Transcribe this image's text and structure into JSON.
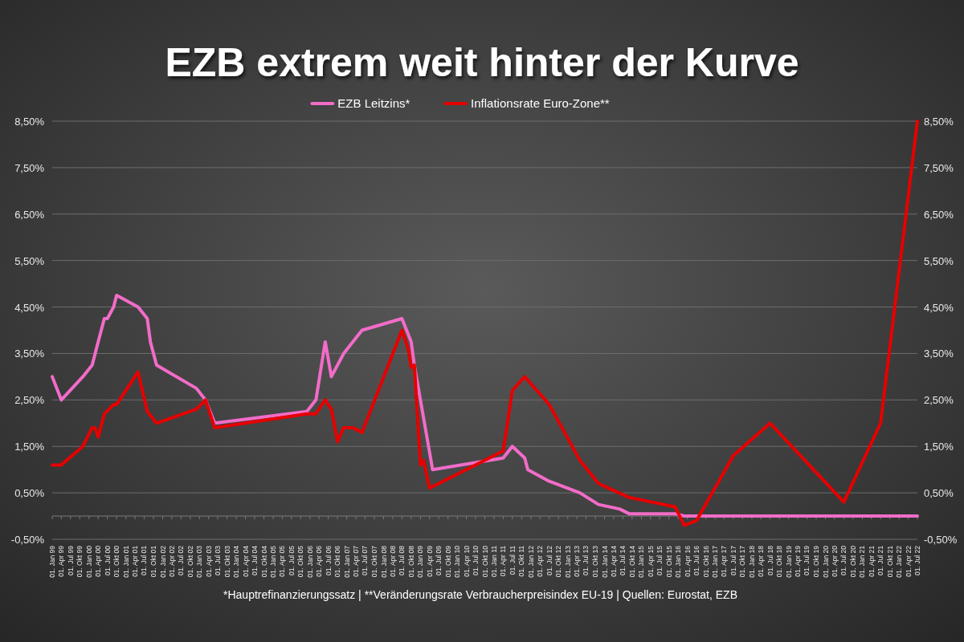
{
  "chart_data": {
    "type": "line",
    "title": "EZB extrem weit hinter der Kurve",
    "legend": "top",
    "grid": "y",
    "line_style": "solid",
    "marker": "none",
    "annotations": [
      "*Hauptrefinanzierungssatz | **Veränderungsrate Verbraucherpreisindex EU-19 | Quellen: Eurostat, EZB"
    ],
    "xlim": [
      "1999-01",
      "2022-07"
    ],
    "xticks": [
      {
        "value": "1999-01",
        "label": "01. Jan 99"
      },
      {
        "value": "1999-04",
        "label": "01. Apr 99"
      },
      {
        "value": "1999-07",
        "label": "01. Jul 99"
      },
      {
        "value": "1999-10",
        "label": "01. Okt 99"
      },
      {
        "value": "2000-01",
        "label": "01. Jan 00"
      },
      {
        "value": "2000-04",
        "label": "01. Apr 00"
      },
      {
        "value": "2000-07",
        "label": "01. Jul 00"
      },
      {
        "value": "2000-10",
        "label": "01. Okt 00"
      },
      {
        "value": "2001-01",
        "label": "01. Jan 01"
      },
      {
        "value": "2001-04",
        "label": "01. Apr 01"
      },
      {
        "value": "2001-07",
        "label": "01. Jul 01"
      },
      {
        "value": "2001-10",
        "label": "01. Okt 01"
      },
      {
        "value": "2002-01",
        "label": "01. Jan 02"
      },
      {
        "value": "2002-04",
        "label": "01. Apr 02"
      },
      {
        "value": "2002-07",
        "label": "01. Jul 02"
      },
      {
        "value": "2002-10",
        "label": "01. Okt 02"
      },
      {
        "value": "2003-01",
        "label": "01. Jan 03"
      },
      {
        "value": "2003-04",
        "label": "01. Apr 03"
      },
      {
        "value": "2003-07",
        "label": "01. Jul 03"
      },
      {
        "value": "2003-10",
        "label": "01. Okt 03"
      },
      {
        "value": "2004-01",
        "label": "01. Jan 04"
      },
      {
        "value": "2004-04",
        "label": "01. Apr 04"
      },
      {
        "value": "2004-07",
        "label": "01. Jul 04"
      },
      {
        "value": "2004-10",
        "label": "01. Okt 04"
      },
      {
        "value": "2005-01",
        "label": "01. Jan 05"
      },
      {
        "value": "2005-04",
        "label": "01. Apr 05"
      },
      {
        "value": "2005-07",
        "label": "01. Jul 05"
      },
      {
        "value": "2005-10",
        "label": "01. Okt 05"
      },
      {
        "value": "2006-01",
        "label": "01. Jan 06"
      },
      {
        "value": "2006-04",
        "label": "01. Apr 06"
      },
      {
        "value": "2006-07",
        "label": "01. Jul 06"
      },
      {
        "value": "2006-10",
        "label": "01. Okt 06"
      },
      {
        "value": "2007-01",
        "label": "01. Jan 07"
      },
      {
        "value": "2007-04",
        "label": "01. Apr 07"
      },
      {
        "value": "2007-07",
        "label": "01. Jul 07"
      },
      {
        "value": "2007-10",
        "label": "01. Okt 07"
      },
      {
        "value": "2008-01",
        "label": "01. Jan 08"
      },
      {
        "value": "2008-04",
        "label": "01. Apr 08"
      },
      {
        "value": "2008-07",
        "label": "01. Jul 08"
      },
      {
        "value": "2008-10",
        "label": "01. Okt 08"
      },
      {
        "value": "2009-01",
        "label": "01. Jan 09"
      },
      {
        "value": "2009-04",
        "label": "01. Apr 09"
      },
      {
        "value": "2009-07",
        "label": "01. Jul 09"
      },
      {
        "value": "2009-10",
        "label": "01. Okt 09"
      },
      {
        "value": "2010-01",
        "label": "01. Jan 10"
      },
      {
        "value": "2010-04",
        "label": "01. Apr 10"
      },
      {
        "value": "2010-07",
        "label": "01. Jul 10"
      },
      {
        "value": "2010-10",
        "label": "01. Okt 10"
      },
      {
        "value": "2011-01",
        "label": "01. Jan 11"
      },
      {
        "value": "2011-04",
        "label": "01. Apr 11"
      },
      {
        "value": "2011-07",
        "label": "01. Jul 11"
      },
      {
        "value": "2011-10",
        "label": "01. Okt 11"
      },
      {
        "value": "2012-01",
        "label": "01. Jan 12"
      },
      {
        "value": "2012-04",
        "label": "01. Apr 12"
      },
      {
        "value": "2012-07",
        "label": "01. Jul 12"
      },
      {
        "value": "2012-10",
        "label": "01. Okt 12"
      },
      {
        "value": "2013-01",
        "label": "01. Jan 13"
      },
      {
        "value": "2013-04",
        "label": "01. Apr 13"
      },
      {
        "value": "2013-07",
        "label": "01. Jul 13"
      },
      {
        "value": "2013-10",
        "label": "01. Okt 13"
      },
      {
        "value": "2014-01",
        "label": "01. Jan 14"
      },
      {
        "value": "2014-04",
        "label": "01. Apr 14"
      },
      {
        "value": "2014-07",
        "label": "01. Jul 14"
      },
      {
        "value": "2014-10",
        "label": "01. Okt 14"
      },
      {
        "value": "2015-01",
        "label": "01. Jan 15"
      },
      {
        "value": "2015-04",
        "label": "01. Apr 15"
      },
      {
        "value": "2015-07",
        "label": "01. Jul 15"
      },
      {
        "value": "2015-10",
        "label": "01. Okt 15"
      },
      {
        "value": "2016-01",
        "label": "01. Jan 16"
      },
      {
        "value": "2016-04",
        "label": "01. Apr 16"
      },
      {
        "value": "2016-07",
        "label": "01. Jul 16"
      },
      {
        "value": "2016-10",
        "label": "01. Okt 16"
      },
      {
        "value": "2017-01",
        "label": "01. Jan 17"
      },
      {
        "value": "2017-04",
        "label": "01. Apr 17"
      },
      {
        "value": "2017-07",
        "label": "01. Jul 17"
      },
      {
        "value": "2017-10",
        "label": "01. Okt 17"
      },
      {
        "value": "2018-01",
        "label": "01. Jan 18"
      },
      {
        "value": "2018-04",
        "label": "01. Apr 18"
      },
      {
        "value": "2018-07",
        "label": "01. Jul 18"
      },
      {
        "value": "2018-10",
        "label": "01. Okt 18"
      },
      {
        "value": "2019-01",
        "label": "01. Jan 19"
      },
      {
        "value": "2019-04",
        "label": "01. Apr 19"
      },
      {
        "value": "2019-07",
        "label": "01. Jul 19"
      },
      {
        "value": "2019-10",
        "label": "01. Okt 19"
      },
      {
        "value": "2020-01",
        "label": "01. Jan 20"
      },
      {
        "value": "2020-04",
        "label": "01. Apr 20"
      },
      {
        "value": "2020-07",
        "label": "01. Jul 20"
      },
      {
        "value": "2020-10",
        "label": "01. Okt 20"
      },
      {
        "value": "2021-01",
        "label": "01. Jan 21"
      },
      {
        "value": "2021-04",
        "label": "01. Apr 21"
      },
      {
        "value": "2021-07",
        "label": "01. Jul 21"
      },
      {
        "value": "2021-10",
        "label": "01. Okt 21"
      },
      {
        "value": "2022-01",
        "label": "01. Jan 22"
      },
      {
        "value": "2022-04",
        "label": "01. Apr 22"
      },
      {
        "value": "2022-07",
        "label": "01. Jul 22"
      }
    ],
    "ylim": [
      -0.5,
      8.5
    ],
    "yticks": [
      {
        "value": -0.5,
        "label": "-0,50%"
      },
      {
        "value": 0.5,
        "label": "0,50%"
      },
      {
        "value": 1.5,
        "label": "1,50%"
      },
      {
        "value": 2.5,
        "label": "2,50%"
      },
      {
        "value": 3.5,
        "label": "3,50%"
      },
      {
        "value": 4.5,
        "label": "4,50%"
      },
      {
        "value": 5.5,
        "label": "5,50%"
      },
      {
        "value": 6.5,
        "label": "6,50%"
      },
      {
        "value": 7.5,
        "label": "7,50%"
      },
      {
        "value": 8.5,
        "label": "8,50%"
      }
    ],
    "y2lim": [
      -0.5,
      8.5
    ],
    "y2ticks": [
      {
        "value": -0.5,
        "label": "-0,50%"
      },
      {
        "value": 0.5,
        "label": "0,50%"
      },
      {
        "value": 1.5,
        "label": "1,50%"
      },
      {
        "value": 2.5,
        "label": "2,50%"
      },
      {
        "value": 3.5,
        "label": "3,50%"
      },
      {
        "value": 4.5,
        "label": "4,50%"
      },
      {
        "value": 5.5,
        "label": "5,50%"
      },
      {
        "value": 6.5,
        "label": "6,50%"
      },
      {
        "value": 7.5,
        "label": "7,50%"
      },
      {
        "value": 8.5,
        "label": "8,50%"
      }
    ],
    "series": [
      {
        "name": "EZB Leitzins*",
        "color": "#f26cc8",
        "x": [
          "1999-01",
          "1999-04",
          "1999-11",
          "2000-02",
          "2000-04",
          "2000-06",
          "2000-07",
          "2000-09",
          "2000-10",
          "2001-05",
          "2001-08",
          "2001-09",
          "2001-11",
          "2002-12",
          "2003-03",
          "2003-06",
          "2005-12",
          "2006-03",
          "2006-06",
          "2006-08",
          "2006-12",
          "2007-06",
          "2008-07",
          "2008-10",
          "2008-11",
          "2009-05",
          "2011-04",
          "2011-07",
          "2011-11",
          "2011-12",
          "2012-07",
          "2013-05",
          "2013-11",
          "2014-06",
          "2014-09",
          "2015-12",
          "2016-03",
          "2022-07"
        ],
        "values": [
          3.0,
          2.5,
          3.0,
          3.25,
          3.75,
          4.25,
          4.25,
          4.5,
          4.75,
          4.5,
          4.25,
          3.75,
          3.25,
          2.75,
          2.5,
          2.0,
          2.25,
          2.5,
          3.75,
          3.0,
          3.5,
          4.0,
          4.25,
          3.75,
          3.25,
          1.0,
          1.25,
          1.5,
          1.25,
          1.0,
          0.75,
          0.5,
          0.25,
          0.15,
          0.05,
          0.05,
          0.0,
          0.0
        ]
      },
      {
        "name": "Inflationsrate Euro-Zone**",
        "color": "#e60000",
        "x": [
          "1999-01",
          "1999-04",
          "1999-11",
          "2000-02",
          "2000-03",
          "2000-04",
          "2000-06",
          "2000-09",
          "2000-10",
          "2001-05",
          "2001-08",
          "2001-11",
          "2002-12",
          "2003-03",
          "2003-06",
          "2005-12",
          "2006-03",
          "2006-06",
          "2006-08",
          "2006-10",
          "2006-12",
          "2007-03",
          "2007-06",
          "2008-07",
          "2008-09",
          "2008-10",
          "2008-11",
          "2009-01",
          "2009-02",
          "2009-04",
          "2011-04",
          "2011-07",
          "2011-11",
          "2012-07",
          "2013-05",
          "2013-11",
          "2014-09",
          "2015-12",
          "2016-03",
          "2016-07",
          "2017-07",
          "2018-07",
          "2020-07",
          "2021-07",
          "2022-07"
        ],
        "values": [
          1.1,
          1.1,
          1.5,
          1.9,
          1.9,
          1.7,
          2.2,
          2.4,
          2.4,
          3.1,
          2.25,
          2.0,
          2.3,
          2.5,
          1.9,
          2.2,
          2.2,
          2.5,
          2.3,
          1.6,
          1.9,
          1.9,
          1.8,
          4.0,
          3.6,
          3.2,
          3.25,
          1.1,
          1.2,
          0.6,
          1.4,
          2.7,
          3.0,
          2.4,
          1.2,
          0.7,
          0.4,
          0.2,
          -0.2,
          -0.1,
          1.3,
          2.0,
          0.3,
          2.0,
          8.5
        ]
      }
    ]
  }
}
